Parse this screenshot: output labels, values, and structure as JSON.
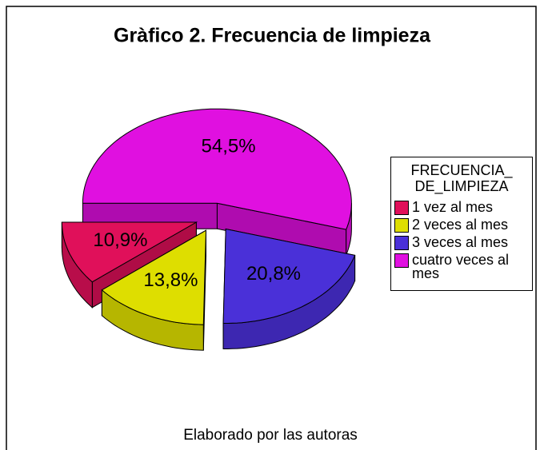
{
  "chart_data": {
    "type": "pie3d",
    "title": "Gràfico 2. Frecuencia de limpieza",
    "legend_title": "FRECUENCIA_\nDE_LIMPIEZA",
    "categories": [
      "1 vez al mes",
      "2 veces al mes",
      "3 veces al mes",
      "cuatro veces al mes"
    ],
    "values": [
      10.9,
      13.8,
      20.8,
      54.5
    ],
    "value_labels": [
      "10,9%",
      "13,8%",
      "20,8%",
      "54,5%"
    ],
    "colors": [
      "#e0105a",
      "#dede00",
      "#4a30d8",
      "#e010e0"
    ],
    "legend": "right",
    "footer": "Elaborado por las autoras"
  }
}
